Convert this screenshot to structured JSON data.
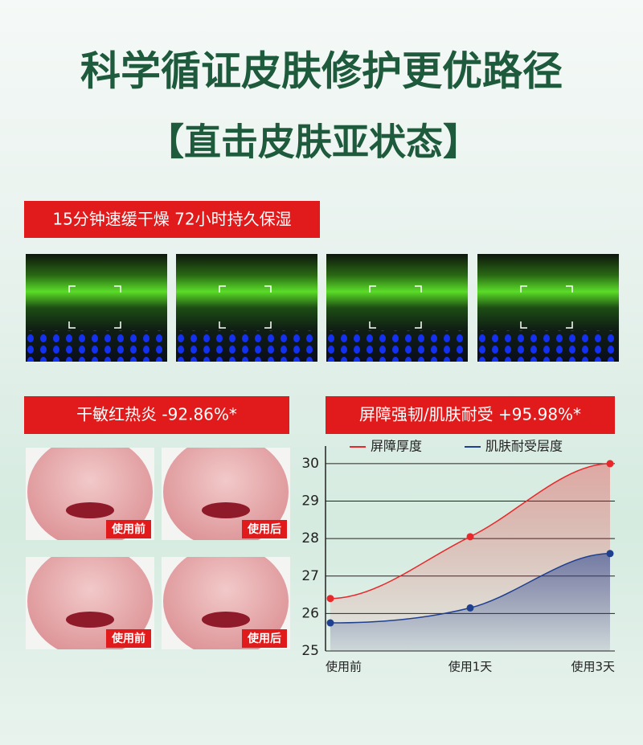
{
  "header": {
    "title": "科学循证皮肤修护更优路径",
    "subtitle": "【直击皮肤亚状态】"
  },
  "banner": "15分钟速缓干燥  72小时持久保湿",
  "faces": {
    "title": "干敏红热炎 -92.86%*",
    "labels": [
      "使用前",
      "使用后",
      "使用前",
      "使用后"
    ]
  },
  "chart_data": {
    "type": "line",
    "title": "屏障强韧/肌肤耐受 +95.98%*",
    "categories": [
      "使用前",
      "使用1天",
      "使用3天"
    ],
    "series": [
      {
        "name": "屏障厚度",
        "color": "#e8282b",
        "values": [
          26.4,
          28.05,
          30
        ]
      },
      {
        "name": "肌肤耐受层度",
        "color": "#1f3f8f",
        "values": [
          25.75,
          26.15,
          27.6
        ]
      }
    ],
    "ylim": [
      25,
      30.47
    ],
    "yticks": [
      25,
      26,
      27,
      28,
      29,
      30
    ],
    "grid": true
  }
}
